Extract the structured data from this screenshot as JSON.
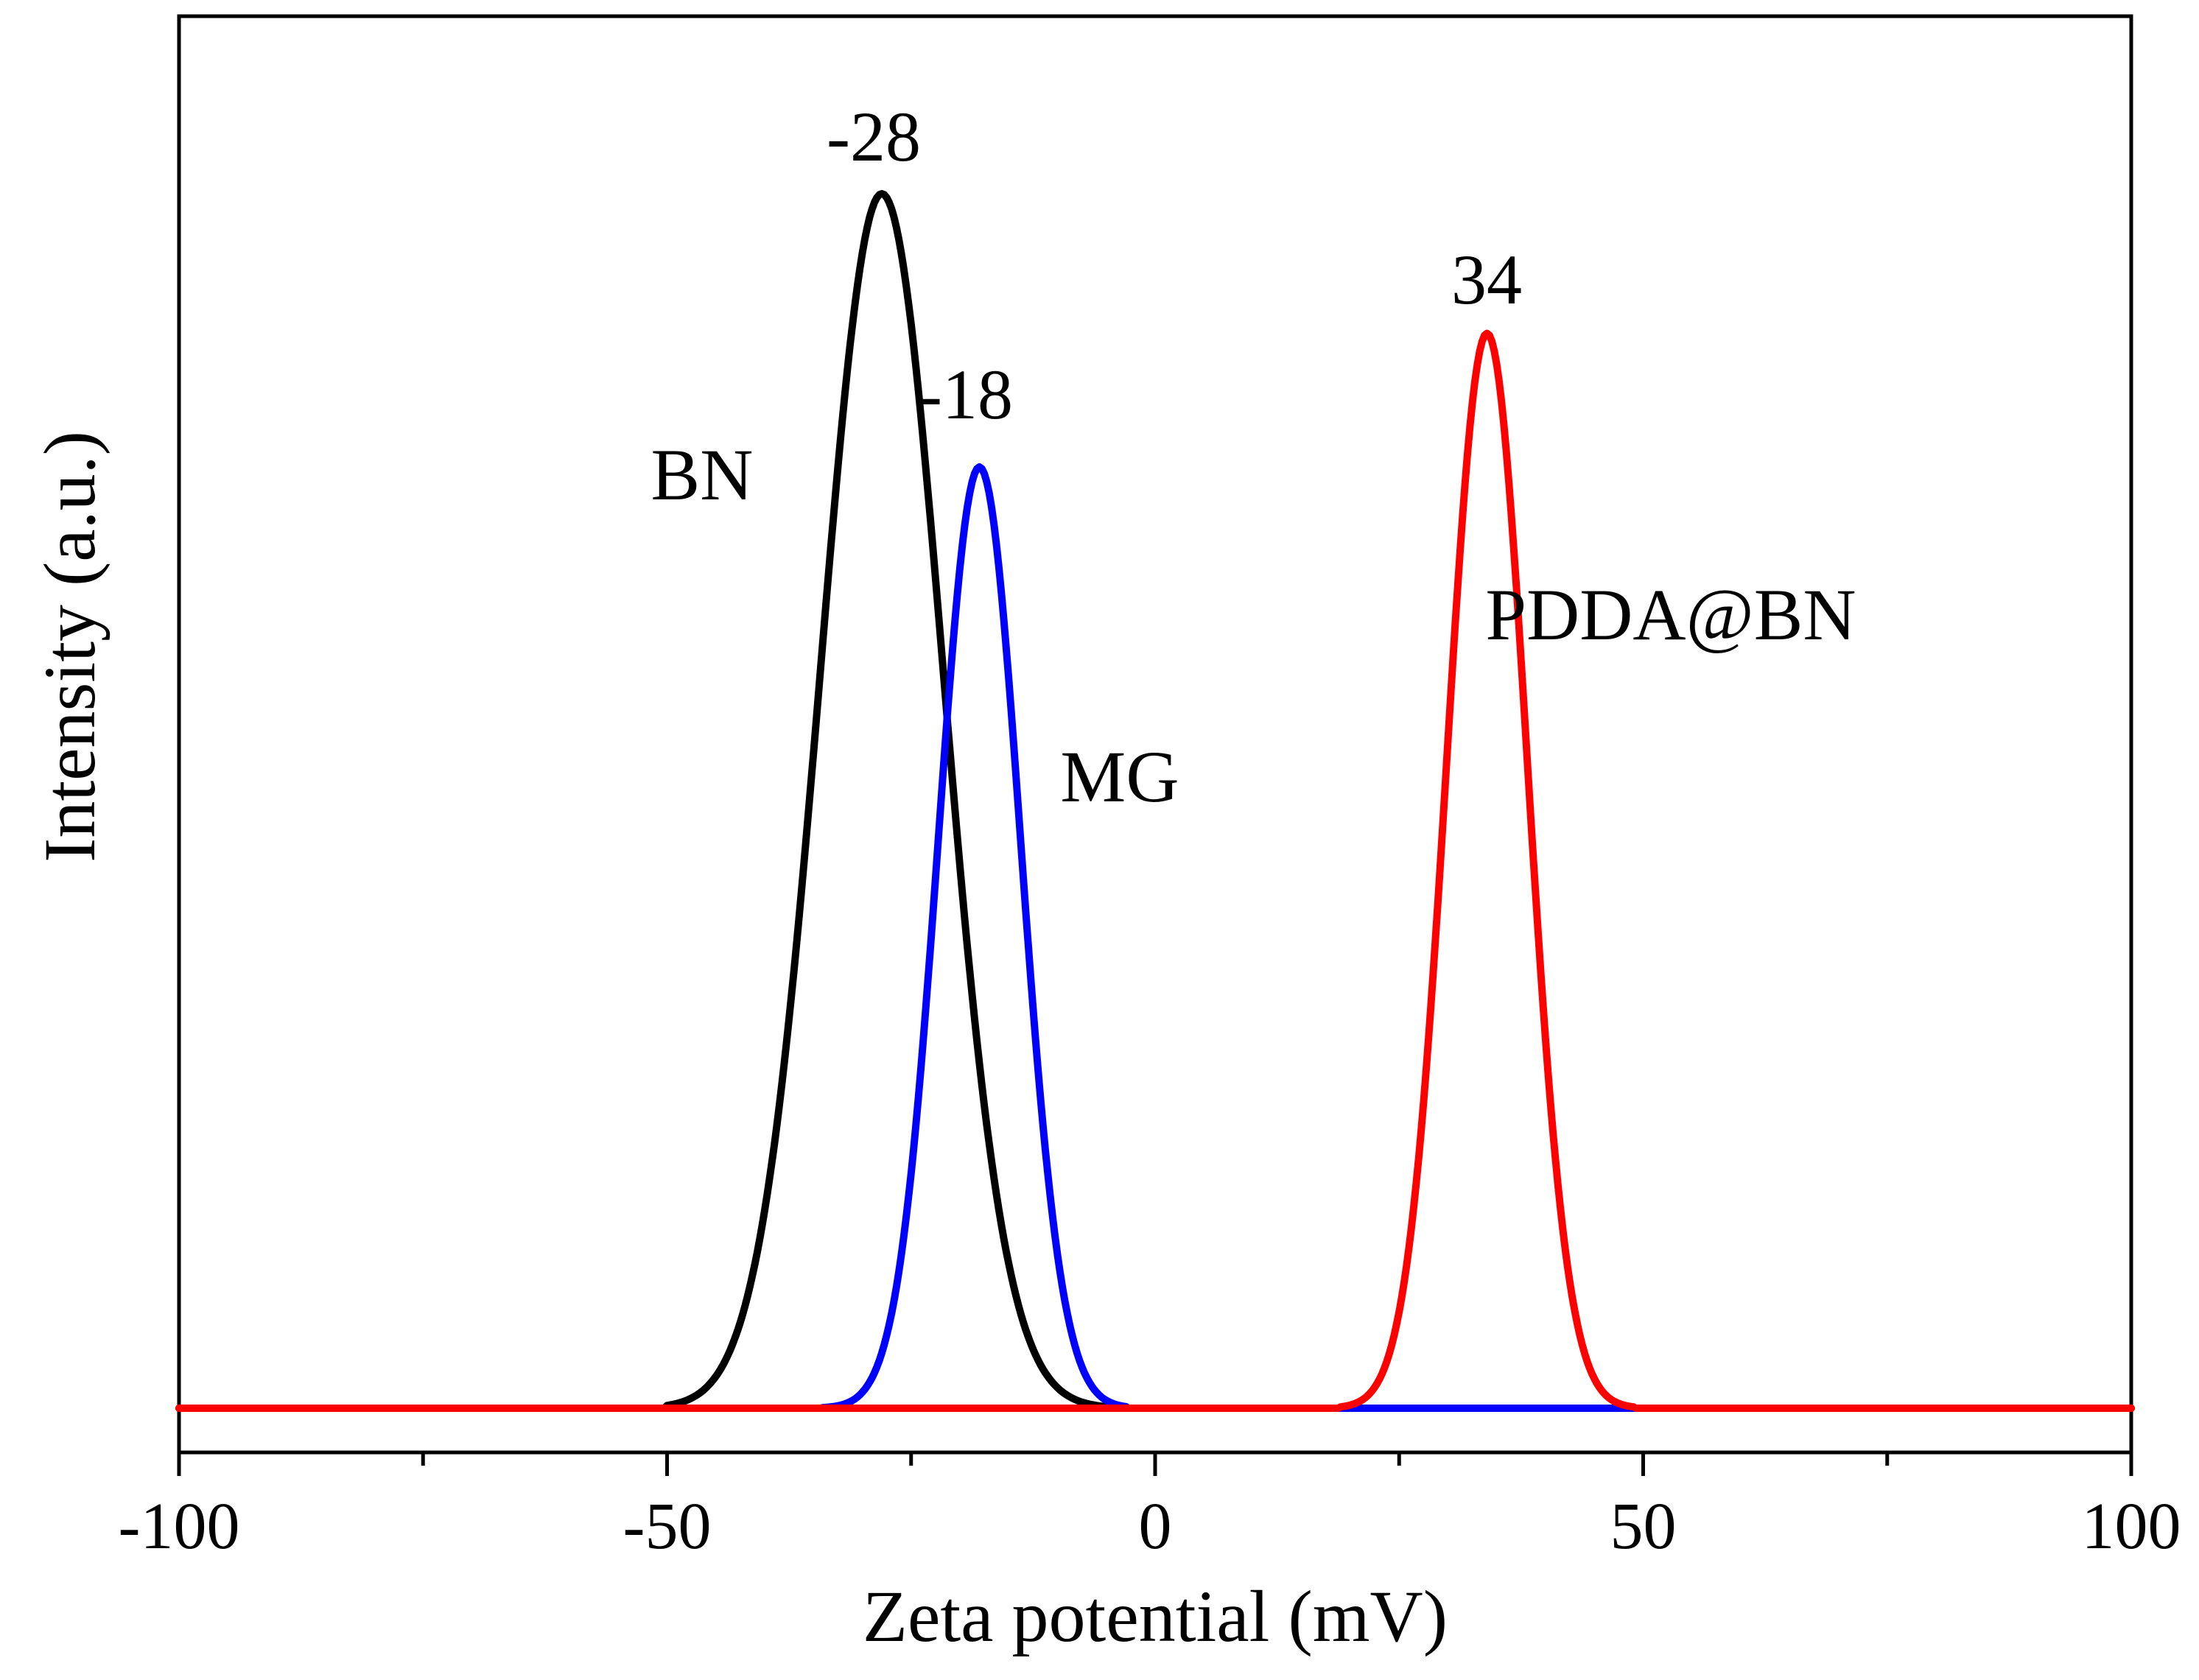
{
  "chart_data": {
    "type": "line",
    "title": "",
    "xlabel": "Zeta potential (mV)",
    "ylabel": "Intensity (a.u.)",
    "xlim": [
      -100,
      100
    ],
    "ylim": [
      -0.02,
      1.15
    ],
    "x_ticks": [
      -100,
      -50,
      0,
      50,
      100
    ],
    "x_tick_labels": [
      "-100",
      "-50",
      "0",
      "50",
      "100"
    ],
    "x_minor_ticks": [
      -75,
      -25,
      25,
      75
    ],
    "y_ticks_shown": false,
    "grid": false,
    "legend": "none (curves labeled inline)",
    "series": [
      {
        "name": "BN",
        "color": "#000000",
        "peak_x": -28,
        "peak_y": 1.0,
        "sigma": 6.3,
        "left_cut": -50,
        "right_cut": -5,
        "peak_label": "-28",
        "curve_label": "BN"
      },
      {
        "name": "MG",
        "color": "#0000ff",
        "peak_x": -18,
        "peak_y": 0.775,
        "sigma": 4.2,
        "left_cut": -34,
        "right_cut": -3,
        "peak_label": "-18",
        "curve_label": "MG"
      },
      {
        "name": "PDDA@BN",
        "color": "#ff0000",
        "peak_x": 34,
        "peak_y": 0.885,
        "sigma": 4.1,
        "left_cut": 19,
        "right_cut": 49,
        "peak_label": "34",
        "curve_label": "PDDA@BN"
      }
    ]
  }
}
